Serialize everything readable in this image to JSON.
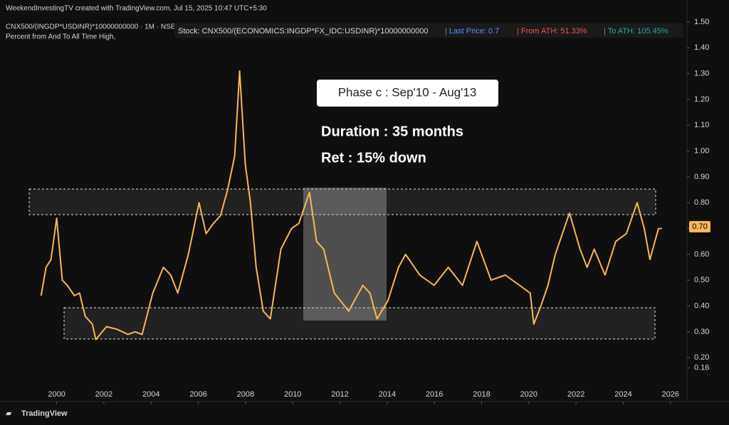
{
  "header": {
    "credit": "WeekendInvestingTV created with TradingView.com, Jul 15, 2025 10:47 UTC+5:30",
    "symbol": "CNX500/(INGDP*USDINR)*10000000000 · 1M · NSE",
    "indicator": "Percent from And To All Time High,",
    "stock": "Stock: CNX500/(ECONOMICS:INGDP*FX_IDC:USDINR)*10000000000",
    "last_price": "| Last Price: 0.7",
    "from_ath": "| From ATH:  51.33%",
    "to_ath": "| To ATH:  105.45%"
  },
  "footer": "TradingView",
  "chart_data": {
    "type": "line",
    "phase": "Phase c : Sep'10 - Aug'13",
    "duration": "Duration : 35 months",
    "ret": "Ret : 15% down",
    "last_price_label": "0.70",
    "x": [
      1999.34,
      1999.55,
      1999.76,
      2000.0,
      2000.24,
      2000.45,
      2000.75,
      2000.97,
      2001.21,
      2001.51,
      2001.66,
      2002.11,
      2002.56,
      2003.02,
      2003.32,
      2003.62,
      2004.07,
      2004.52,
      2004.83,
      2005.13,
      2005.58,
      2006.03,
      2006.33,
      2006.64,
      2006.94,
      2007.24,
      2007.54,
      2007.75,
      2007.99,
      2008.21,
      2008.45,
      2008.75,
      2009.05,
      2009.5,
      2009.95,
      2010.26,
      2010.71,
      2011.01,
      2011.31,
      2011.76,
      2012.37,
      2012.97,
      2013.27,
      2013.57,
      2014.03,
      2014.48,
      2014.78,
      2015.38,
      2015.99,
      2016.59,
      2017.19,
      2017.8,
      2018.4,
      2019.0,
      2019.61,
      2020.06,
      2020.21,
      2020.51,
      2020.81,
      2021.12,
      2021.72,
      2022.17,
      2022.47,
      2022.77,
      2023.23,
      2023.68,
      2024.13,
      2024.59,
      2024.89,
      2025.13,
      2025.49,
      2025.64
    ],
    "series": [
      {
        "name": "CNX500/(INGDP*USDINR)*10000000000",
        "color": "#f7b756",
        "values": [
          0.44,
          0.55,
          0.58,
          0.74,
          0.5,
          0.48,
          0.44,
          0.45,
          0.36,
          0.33,
          0.27,
          0.32,
          0.31,
          0.29,
          0.3,
          0.29,
          0.45,
          0.55,
          0.52,
          0.45,
          0.6,
          0.8,
          0.68,
          0.72,
          0.75,
          0.85,
          0.98,
          1.31,
          0.95,
          0.8,
          0.55,
          0.38,
          0.35,
          0.62,
          0.7,
          0.72,
          0.84,
          0.65,
          0.62,
          0.45,
          0.38,
          0.48,
          0.45,
          0.35,
          0.42,
          0.55,
          0.6,
          0.52,
          0.48,
          0.55,
          0.48,
          0.65,
          0.5,
          0.52,
          0.48,
          0.45,
          0.33,
          0.4,
          0.48,
          0.6,
          0.76,
          0.62,
          0.55,
          0.62,
          0.52,
          0.65,
          0.68,
          0.8,
          0.7,
          0.58,
          0.7,
          0.7
        ]
      }
    ],
    "xlim": [
      1997.6,
      2026.7
    ],
    "xticks": [
      2000,
      2002,
      2004,
      2006,
      2008,
      2010,
      2012,
      2014,
      2016,
      2018,
      2020,
      2022,
      2024,
      2026
    ],
    "ylim": [
      0.03,
      1.53
    ],
    "yticks": [
      0.16,
      {
        "value": 0.2,
        "label": "0.20"
      },
      {
        "value": 0.3,
        "label": "0.30"
      },
      {
        "value": 0.4,
        "label": "0.40"
      },
      {
        "value": 0.5,
        "label": "0.50"
      },
      {
        "value": 0.6,
        "label": "0.60"
      },
      {
        "value": 0.7,
        "label": "0.70"
      },
      {
        "value": 0.8,
        "label": "0.80"
      },
      {
        "value": 0.9,
        "label": "0.90"
      },
      {
        "value": 1.0,
        "label": "1.00"
      },
      {
        "value": 1.1,
        "label": "1.10"
      },
      {
        "value": 1.2,
        "label": "1.20"
      },
      {
        "value": 1.3,
        "label": "1.30"
      },
      {
        "value": 1.4,
        "label": "1.40"
      },
      {
        "value": 1.5,
        "label": "1.50"
      }
    ]
  }
}
